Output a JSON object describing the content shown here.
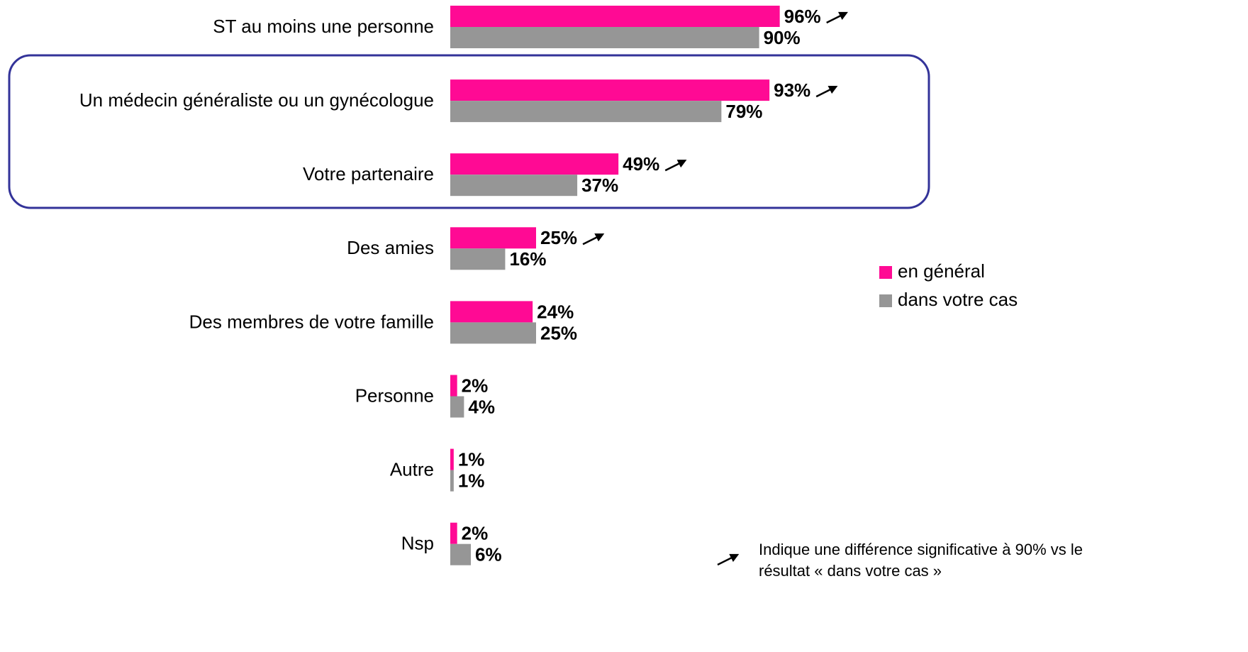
{
  "chart_data": {
    "type": "hbar",
    "categories": [
      "ST au moins une personne",
      "Un médecin généraliste ou un gynécologue",
      "Votre partenaire",
      "Des amies",
      "Des membres de votre famille",
      "Personne",
      "Autre",
      "Nsp"
    ],
    "series": [
      {
        "name": "en général",
        "color": "#ff0a94",
        "values": [
          96,
          93,
          49,
          25,
          24,
          2,
          1,
          2
        ],
        "value_labels": [
          "96%",
          "93%",
          "49%",
          "25%",
          "24%",
          "2%",
          "1%",
          "2%"
        ]
      },
      {
        "name": "dans votre cas",
        "color": "#969696",
        "values": [
          90,
          79,
          37,
          16,
          25,
          4,
          1,
          6
        ],
        "value_labels": [
          "90%",
          "79%",
          "37%",
          "16%",
          "25%",
          "4%",
          "1%",
          "6%"
        ]
      }
    ],
    "xlim": [
      0,
      100
    ],
    "significant": [
      true,
      true,
      true,
      true,
      false,
      false,
      false,
      false
    ],
    "footnote": [
      "Indique une différence significative à 90% vs le",
      "résultat « dans votre cas »"
    ]
  }
}
